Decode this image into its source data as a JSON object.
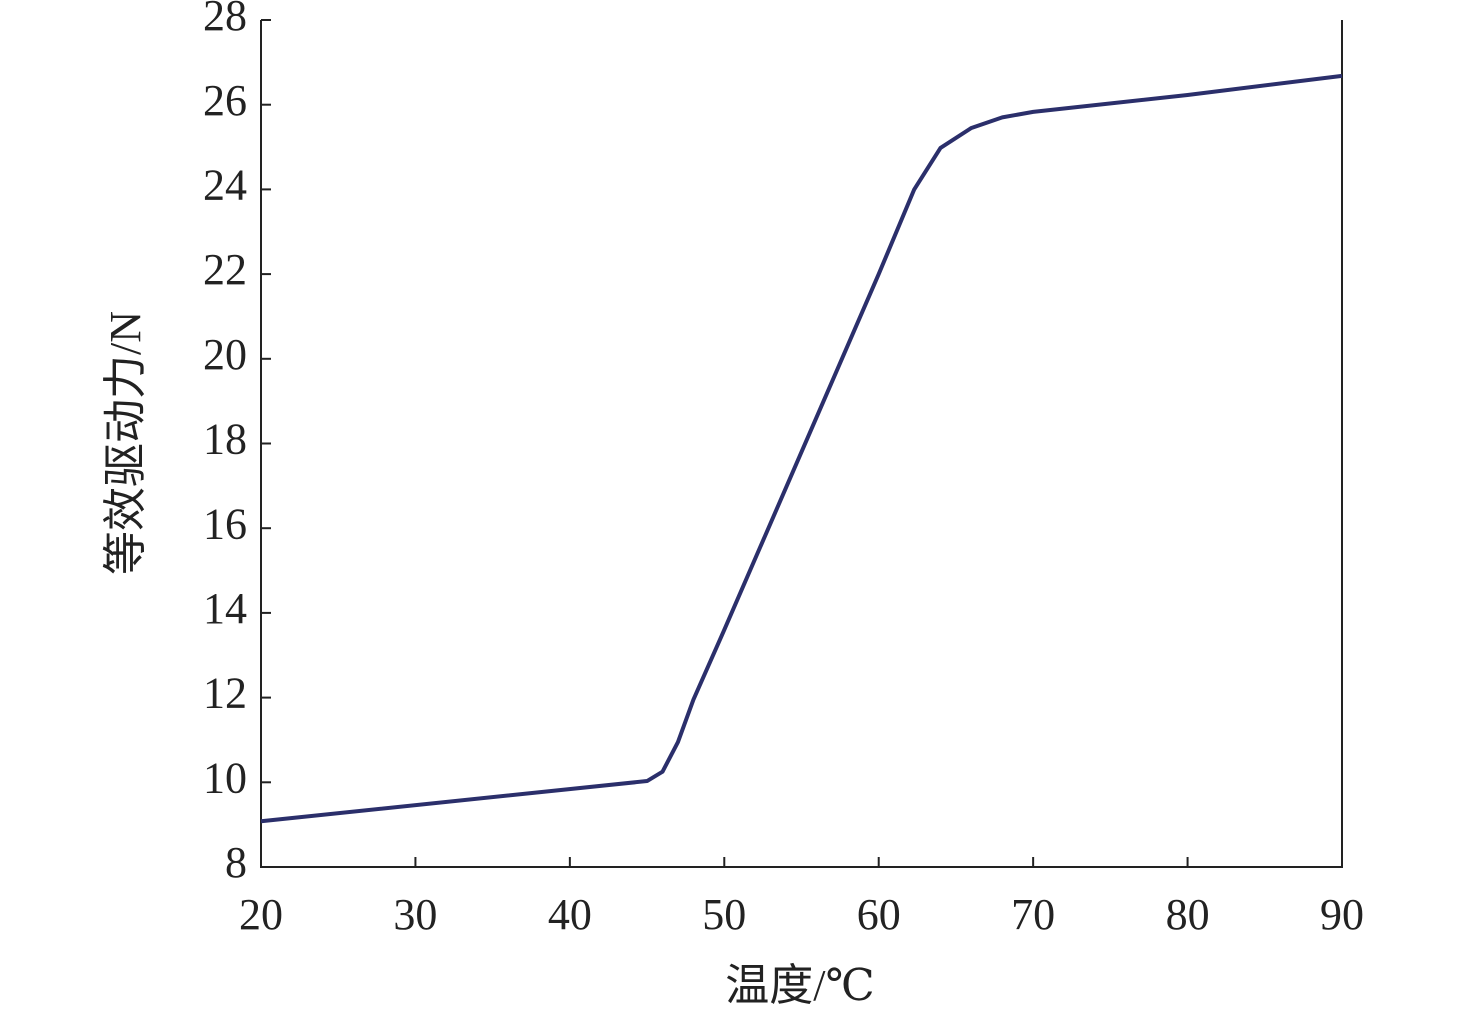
{
  "chart_data": {
    "type": "line",
    "xlabel": "温度/℃",
    "ylabel": "等效驱动力/N",
    "x": [
      20,
      45,
      46,
      47,
      48,
      50,
      55,
      60,
      62.3,
      64,
      66,
      68,
      70,
      80,
      90
    ],
    "values": [
      9.08,
      10.03,
      10.25,
      10.95,
      11.95,
      13.6,
      17.8,
      22.0,
      24.0,
      24.98,
      25.45,
      25.7,
      25.83,
      26.23,
      26.68
    ],
    "color": "#2b2f6b",
    "xlim": [
      20,
      90
    ],
    "xticks": [
      20,
      30,
      40,
      50,
      60,
      70,
      80,
      90
    ],
    "ylim": [
      8,
      28
    ],
    "yticks": [
      8,
      10,
      12,
      14,
      16,
      18,
      20,
      22,
      24,
      26,
      28
    ]
  }
}
